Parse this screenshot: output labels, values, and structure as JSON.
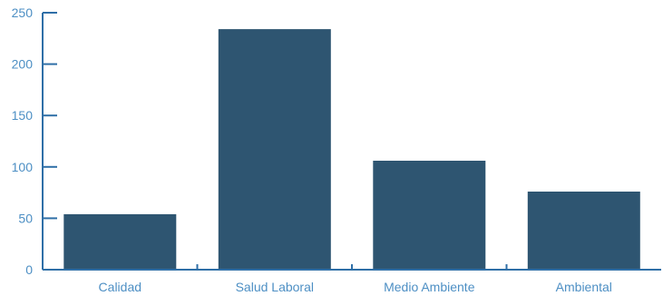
{
  "chart_data": {
    "type": "bar",
    "categories": [
      "Calidad",
      "Salud Laboral",
      "Medio Ambiente",
      "Ambiental"
    ],
    "values": [
      54,
      234,
      106,
      76
    ],
    "title": "",
    "xlabel": "",
    "ylabel": "",
    "ylim": [
      0,
      250
    ],
    "yticks": [
      0,
      50,
      100,
      150,
      200,
      250
    ],
    "ytick_labels": [
      "0",
      "50",
      "100",
      "150",
      "200",
      "250"
    ],
    "grid": false,
    "legend": "none",
    "colors": {
      "bar": "#2e5571",
      "axis": "#2f6fa7",
      "tick_label": "#4d8fc4",
      "category_label": "#4d8fc4"
    }
  }
}
